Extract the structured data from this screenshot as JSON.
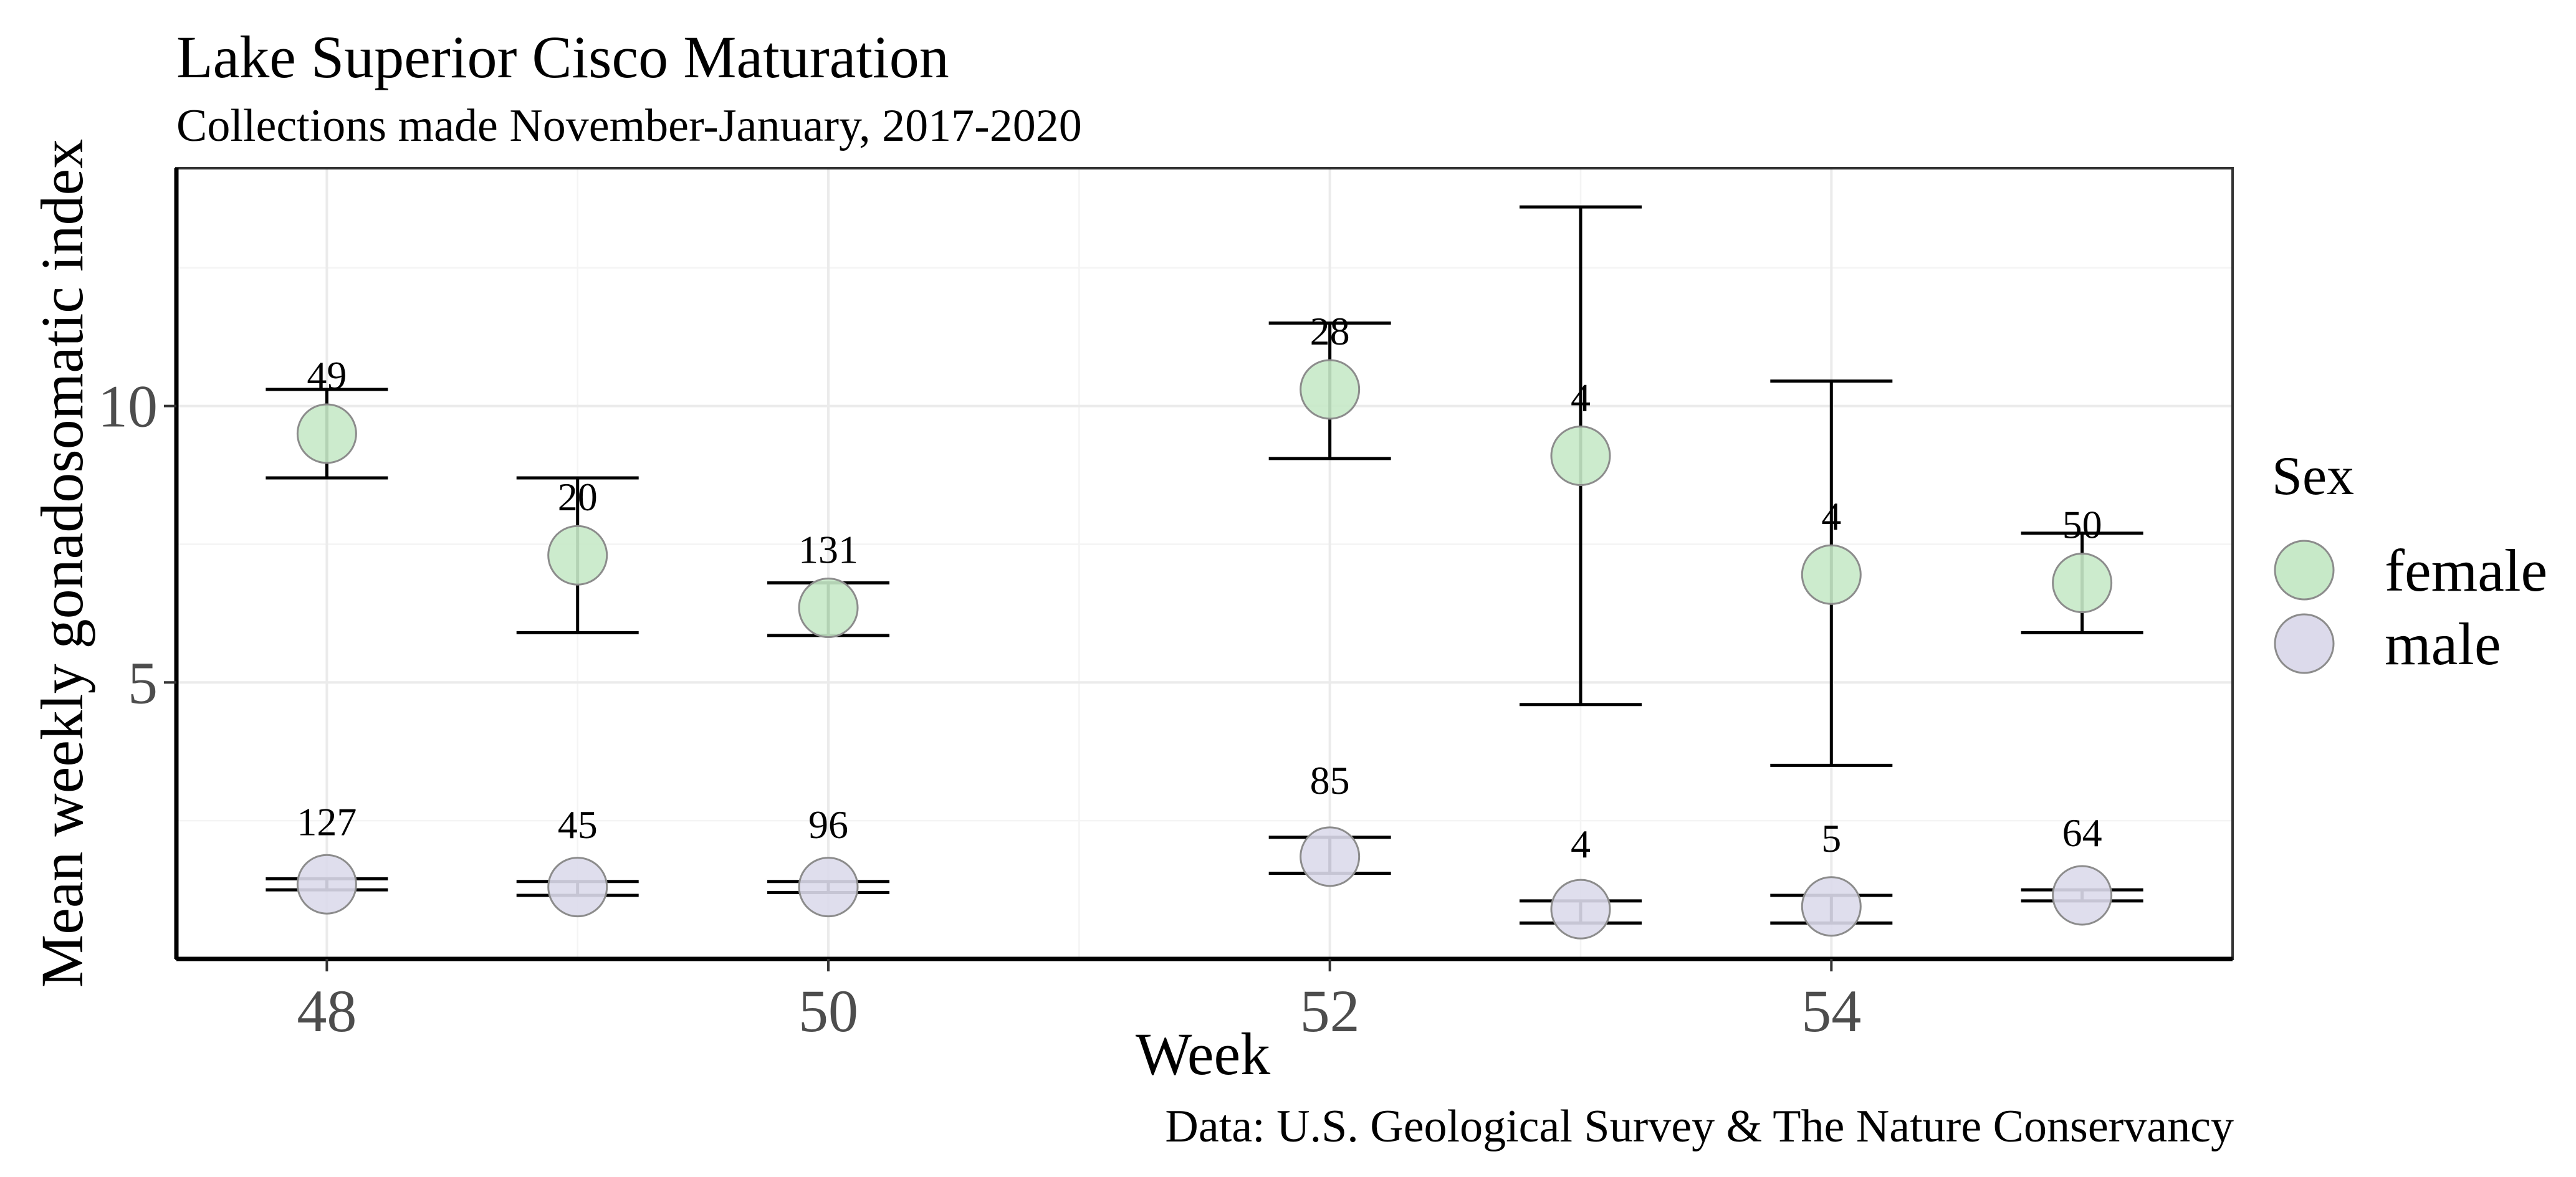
{
  "chart_data": {
    "type": "scatter",
    "title": "Lake Superior Cisco Maturation",
    "subtitle": "Collections made November-January, 2017-2020",
    "xlabel": "Week",
    "ylabel": "Mean weekly gonadosomatic index",
    "caption": "Data: U.S. Geological Survey & The Nature Conservancy",
    "xlim": [
      47.4,
      55.6
    ],
    "ylim": [
      0.0,
      14.3
    ],
    "x_ticks": [
      48,
      50,
      52,
      54
    ],
    "y_ticks": [
      5,
      10
    ],
    "grid": true,
    "legend": {
      "title": "Sex",
      "position": "right"
    },
    "series": [
      {
        "name": "female",
        "color": "#c7e9c8",
        "points": [
          {
            "x": 48,
            "y": 9.5,
            "ymin": 8.7,
            "ymax": 10.3,
            "n": "49"
          },
          {
            "x": 49,
            "y": 7.3,
            "ymin": 5.9,
            "ymax": 8.7,
            "n": "20"
          },
          {
            "x": 50,
            "y": 6.35,
            "ymin": 5.85,
            "ymax": 6.8,
            "n": "131"
          },
          {
            "x": 52,
            "y": 10.3,
            "ymin": 9.05,
            "ymax": 11.5,
            "n": "28"
          },
          {
            "x": 53,
            "y": 9.1,
            "ymin": 4.6,
            "ymax": 13.6,
            "n": "4"
          },
          {
            "x": 54,
            "y": 6.95,
            "ymin": 3.5,
            "ymax": 10.45,
            "n": "4"
          },
          {
            "x": 55,
            "y": 6.8,
            "ymin": 5.9,
            "ymax": 7.7,
            "n": "50"
          }
        ]
      },
      {
        "name": "male",
        "color": "#dcdaeb",
        "points": [
          {
            "x": 48,
            "y": 1.35,
            "ymin": 1.25,
            "ymax": 1.45,
            "n": "127"
          },
          {
            "x": 49,
            "y": 1.3,
            "ymin": 1.15,
            "ymax": 1.4,
            "n": "45"
          },
          {
            "x": 50,
            "y": 1.3,
            "ymin": 1.2,
            "ymax": 1.4,
            "n": "96"
          },
          {
            "x": 52,
            "y": 1.85,
            "ymin": 1.55,
            "ymax": 2.2,
            "n": "85"
          },
          {
            "x": 53,
            "y": 0.9,
            "ymin": 0.65,
            "ymax": 1.05,
            "n": "4"
          },
          {
            "x": 54,
            "y": 0.95,
            "ymin": 0.65,
            "ymax": 1.15,
            "n": "5"
          },
          {
            "x": 55,
            "y": 1.15,
            "ymin": 1.05,
            "ymax": 1.25,
            "n": "64"
          }
        ]
      }
    ]
  }
}
